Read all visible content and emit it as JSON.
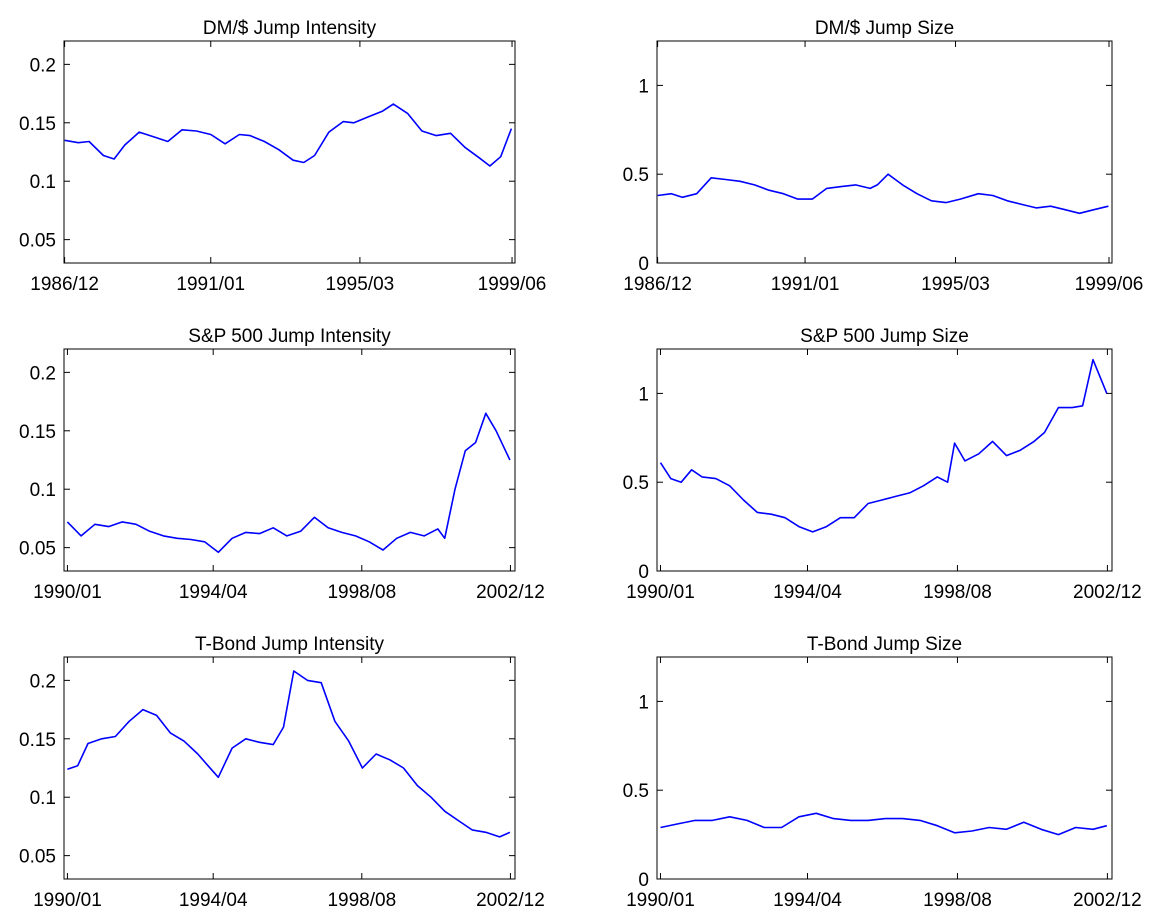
{
  "figure": {
    "line_color": "#0000ff",
    "axis_color": "#000000",
    "background": "#ffffff"
  },
  "chart_data": [
    {
      "type": "line",
      "title": "DM/$ Jump Intensity",
      "xlabel": "",
      "ylabel": "",
      "xlim": [
        1986.9,
        1999.5
      ],
      "ylim": [
        0.03,
        0.22
      ],
      "xticks": [
        1986.917,
        1991.0,
        1995.167,
        1999.417
      ],
      "xtick_labels": [
        "1986/12",
        "1991/01",
        "1995/03",
        "1999/06"
      ],
      "yticks": [
        0.05,
        0.1,
        0.15,
        0.2
      ],
      "ytick_labels": [
        "0.05",
        "0.1",
        "0.15",
        "0.2"
      ],
      "grid": false,
      "series": [
        {
          "x": [
            1986.92,
            1987.3,
            1987.6,
            1988.0,
            1988.3,
            1988.6,
            1989.0,
            1989.4,
            1989.8,
            1990.2,
            1990.6,
            1991.0,
            1991.4,
            1991.8,
            1992.1,
            1992.5,
            1992.9,
            1993.3,
            1993.6,
            1993.9,
            1994.3,
            1994.7,
            1995.0,
            1995.4,
            1995.8,
            1996.1,
            1996.5,
            1996.9,
            1997.3,
            1997.7,
            1998.1,
            1998.5,
            1998.8,
            1999.1,
            1999.4
          ],
          "y": [
            0.135,
            0.133,
            0.134,
            0.122,
            0.119,
            0.131,
            0.142,
            0.138,
            0.134,
            0.144,
            0.143,
            0.14,
            0.132,
            0.14,
            0.139,
            0.134,
            0.127,
            0.118,
            0.116,
            0.122,
            0.142,
            0.151,
            0.15,
            0.155,
            0.16,
            0.166,
            0.158,
            0.143,
            0.139,
            0.141,
            0.129,
            0.12,
            0.113,
            0.121,
            0.145
          ]
        }
      ]
    },
    {
      "type": "line",
      "title": "DM/$ Jump Size",
      "xlabel": "",
      "ylabel": "",
      "xlim": [
        1986.9,
        1999.5
      ],
      "ylim": [
        0,
        1.25
      ],
      "xticks": [
        1986.917,
        1991.0,
        1995.167,
        1999.417
      ],
      "xtick_labels": [
        "1986/12",
        "1991/01",
        "1995/03",
        "1999/06"
      ],
      "yticks": [
        0,
        0.5,
        1
      ],
      "ytick_labels": [
        "0",
        "0.5",
        "1"
      ],
      "grid": false,
      "series": [
        {
          "x": [
            1986.92,
            1987.3,
            1987.6,
            1988.0,
            1988.4,
            1988.8,
            1989.2,
            1989.6,
            1990.0,
            1990.4,
            1990.8,
            1991.2,
            1991.6,
            1992.0,
            1992.4,
            1992.8,
            1993.0,
            1993.3,
            1993.7,
            1994.1,
            1994.5,
            1994.9,
            1995.3,
            1995.8,
            1996.2,
            1996.6,
            1997.0,
            1997.4,
            1997.8,
            1998.2,
            1998.6,
            1999.0,
            1999.4
          ],
          "y": [
            0.38,
            0.39,
            0.37,
            0.39,
            0.48,
            0.47,
            0.46,
            0.44,
            0.41,
            0.39,
            0.36,
            0.36,
            0.42,
            0.43,
            0.44,
            0.42,
            0.44,
            0.5,
            0.44,
            0.39,
            0.35,
            0.34,
            0.36,
            0.39,
            0.38,
            0.35,
            0.33,
            0.31,
            0.32,
            0.3,
            0.28,
            0.3,
            0.32
          ]
        }
      ]
    },
    {
      "type": "line",
      "title": "S&P 500 Jump Intensity",
      "xlabel": "",
      "ylabel": "",
      "xlim": [
        1989.9,
        2003.05
      ],
      "ylim": [
        0.03,
        0.22
      ],
      "xticks": [
        1990.0,
        1994.25,
        1998.583,
        2002.917
      ],
      "xtick_labels": [
        "1990/01",
        "1994/04",
        "1998/08",
        "2002/12"
      ],
      "yticks": [
        0.05,
        0.1,
        0.15,
        0.2
      ],
      "ytick_labels": [
        "0.05",
        "0.1",
        "0.15",
        "0.2"
      ],
      "grid": false,
      "series": [
        {
          "x": [
            1990.0,
            1990.4,
            1990.8,
            1991.2,
            1991.6,
            1992.0,
            1992.4,
            1992.8,
            1993.2,
            1993.6,
            1994.0,
            1994.4,
            1994.8,
            1995.2,
            1995.6,
            1996.0,
            1996.4,
            1996.8,
            1997.2,
            1997.6,
            1998.0,
            1998.4,
            1998.8,
            1999.2,
            1999.6,
            2000.0,
            2000.4,
            2000.8,
            2001.0,
            2001.3,
            2001.6,
            2001.9,
            2002.2,
            2002.5,
            2002.9
          ],
          "y": [
            0.072,
            0.06,
            0.07,
            0.068,
            0.072,
            0.07,
            0.064,
            0.06,
            0.058,
            0.057,
            0.055,
            0.046,
            0.058,
            0.063,
            0.062,
            0.067,
            0.06,
            0.064,
            0.076,
            0.067,
            0.063,
            0.06,
            0.055,
            0.048,
            0.058,
            0.063,
            0.06,
            0.066,
            0.058,
            0.1,
            0.133,
            0.14,
            0.165,
            0.15,
            0.125
          ]
        }
      ]
    },
    {
      "type": "line",
      "title": "S&P 500 Jump Size",
      "xlabel": "",
      "ylabel": "",
      "xlim": [
        1989.9,
        2003.05
      ],
      "ylim": [
        0,
        1.25
      ],
      "xticks": [
        1990.0,
        1994.25,
        1998.583,
        2002.917
      ],
      "xtick_labels": [
        "1990/01",
        "1994/04",
        "1998/08",
        "2002/12"
      ],
      "yticks": [
        0,
        0.5,
        1
      ],
      "ytick_labels": [
        "0",
        "0.5",
        "1"
      ],
      "grid": false,
      "series": [
        {
          "x": [
            1990.0,
            1990.3,
            1990.6,
            1990.9,
            1991.2,
            1991.6,
            1992.0,
            1992.4,
            1992.8,
            1993.2,
            1993.6,
            1994.0,
            1994.4,
            1994.8,
            1995.2,
            1995.6,
            1996.0,
            1996.4,
            1996.8,
            1997.2,
            1997.6,
            1998.0,
            1998.3,
            1998.5,
            1998.8,
            1999.2,
            1999.6,
            2000.0,
            2000.4,
            2000.8,
            2001.1,
            2001.5,
            2001.9,
            2002.2,
            2002.5,
            2002.9
          ],
          "y": [
            0.61,
            0.52,
            0.5,
            0.57,
            0.53,
            0.52,
            0.48,
            0.4,
            0.33,
            0.32,
            0.3,
            0.25,
            0.22,
            0.25,
            0.3,
            0.3,
            0.38,
            0.4,
            0.42,
            0.44,
            0.48,
            0.53,
            0.5,
            0.72,
            0.62,
            0.66,
            0.73,
            0.65,
            0.68,
            0.73,
            0.78,
            0.92,
            0.92,
            0.93,
            1.19,
            1.0
          ]
        }
      ]
    },
    {
      "type": "line",
      "title": "T-Bond Jump Intensity",
      "xlabel": "",
      "ylabel": "",
      "xlim": [
        1989.9,
        2003.05
      ],
      "ylim": [
        0.03,
        0.22
      ],
      "xticks": [
        1990.0,
        1994.25,
        1998.583,
        2002.917
      ],
      "xtick_labels": [
        "1990/01",
        "1994/04",
        "1998/08",
        "2002/12"
      ],
      "yticks": [
        0.05,
        0.1,
        0.15,
        0.2
      ],
      "ytick_labels": [
        "0.05",
        "0.1",
        "0.15",
        "0.2"
      ],
      "grid": false,
      "series": [
        {
          "x": [
            1990.0,
            1990.3,
            1990.6,
            1991.0,
            1991.4,
            1991.8,
            1992.2,
            1992.6,
            1993.0,
            1993.4,
            1993.8,
            1994.1,
            1994.4,
            1994.8,
            1995.2,
            1995.6,
            1996.0,
            1996.3,
            1996.6,
            1997.0,
            1997.4,
            1997.8,
            1998.2,
            1998.6,
            1999.0,
            1999.4,
            1999.8,
            2000.2,
            2000.6,
            2001.0,
            2001.4,
            2001.8,
            2002.2,
            2002.6,
            2002.9
          ],
          "y": [
            0.124,
            0.127,
            0.146,
            0.15,
            0.152,
            0.165,
            0.175,
            0.17,
            0.155,
            0.148,
            0.137,
            0.127,
            0.117,
            0.142,
            0.15,
            0.147,
            0.145,
            0.16,
            0.208,
            0.2,
            0.198,
            0.165,
            0.148,
            0.125,
            0.137,
            0.132,
            0.125,
            0.11,
            0.1,
            0.088,
            0.08,
            0.072,
            0.07,
            0.066,
            0.07
          ]
        }
      ]
    },
    {
      "type": "line",
      "title": "T-Bond Jump Size",
      "xlabel": "",
      "ylabel": "",
      "xlim": [
        1989.9,
        2003.05
      ],
      "ylim": [
        0,
        1.25
      ],
      "xticks": [
        1990.0,
        1994.25,
        1998.583,
        2002.917
      ],
      "xtick_labels": [
        "1990/01",
        "1994/04",
        "1998/08",
        "2002/12"
      ],
      "yticks": [
        0,
        0.5,
        1
      ],
      "ytick_labels": [
        "0",
        "0.5",
        "1"
      ],
      "grid": false,
      "series": [
        {
          "x": [
            1990.0,
            1990.5,
            1991.0,
            1991.5,
            1992.0,
            1992.5,
            1993.0,
            1993.5,
            1994.0,
            1994.5,
            1995.0,
            1995.5,
            1996.0,
            1996.5,
            1997.0,
            1997.5,
            1998.0,
            1998.5,
            1999.0,
            1999.5,
            2000.0,
            2000.5,
            2001.0,
            2001.5,
            2002.0,
            2002.5,
            2002.9
          ],
          "y": [
            0.29,
            0.31,
            0.33,
            0.33,
            0.35,
            0.33,
            0.29,
            0.29,
            0.35,
            0.37,
            0.34,
            0.33,
            0.33,
            0.34,
            0.34,
            0.33,
            0.3,
            0.26,
            0.27,
            0.29,
            0.28,
            0.32,
            0.28,
            0.25,
            0.29,
            0.28,
            0.3
          ]
        }
      ]
    }
  ]
}
